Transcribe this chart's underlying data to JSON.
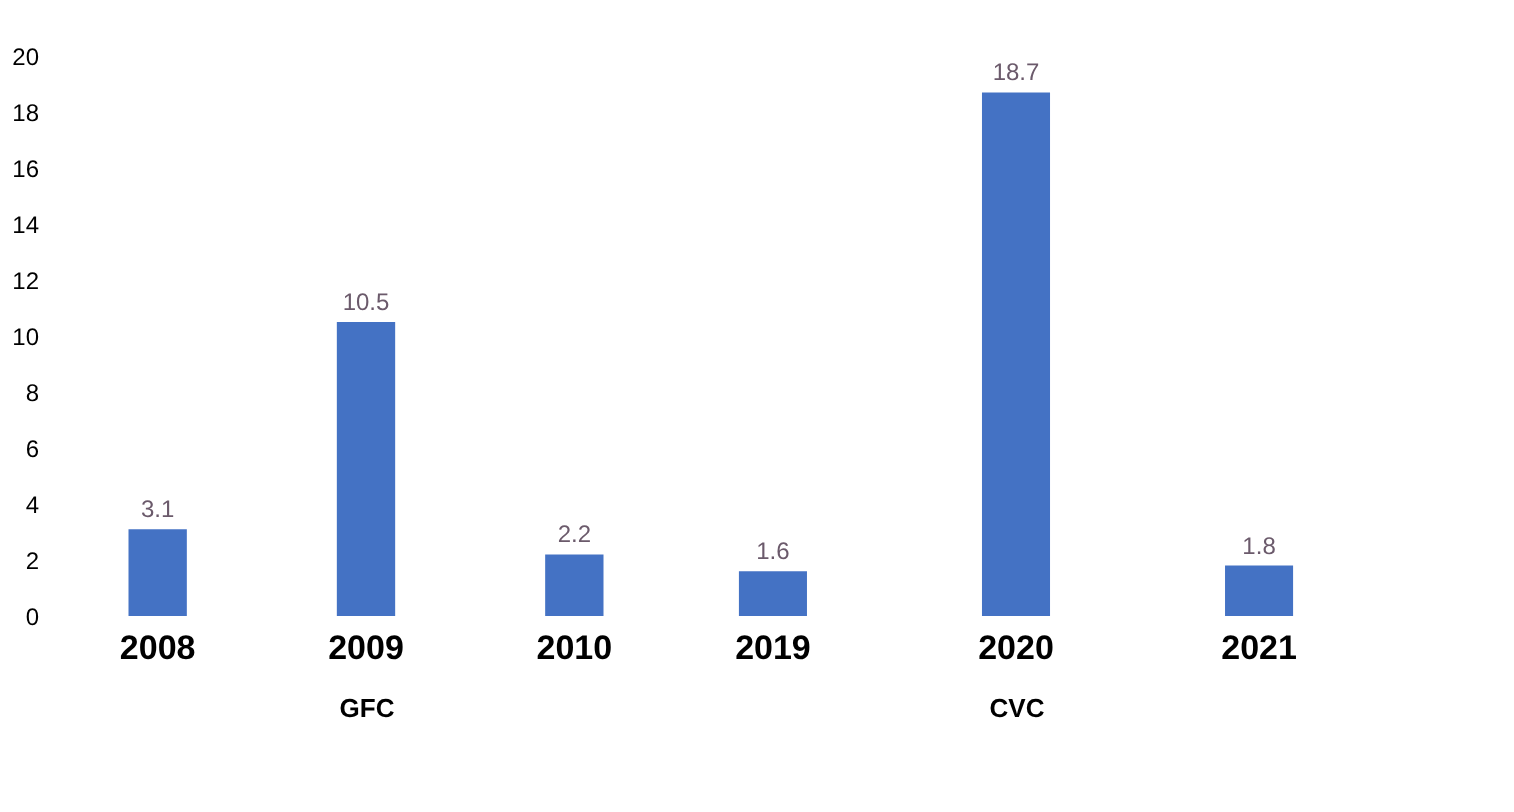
{
  "chart_data": [
    {
      "type": "bar",
      "categories": [
        "2008",
        "2009",
        "2010"
      ],
      "values": [
        3.1,
        10.5,
        2.2
      ],
      "color": "#4472c4",
      "xlabel": "GFC",
      "ylim": [
        0,
        20
      ],
      "yticks": [
        0,
        2,
        4,
        6,
        8,
        10,
        12,
        14,
        16,
        18,
        20
      ],
      "data_labels": true
    },
    {
      "type": "bar",
      "categories": [
        "2019",
        "2020",
        "2021"
      ],
      "values": [
        1.6,
        18.7,
        1.8
      ],
      "color": "#4472c4",
      "xlabel": "CVC",
      "ylim": [
        0,
        20
      ],
      "yticks": [
        0,
        2,
        4,
        6,
        8,
        10,
        12,
        14,
        16,
        18,
        20
      ],
      "data_labels": true,
      "tick_labels": "x"
    }
  ]
}
